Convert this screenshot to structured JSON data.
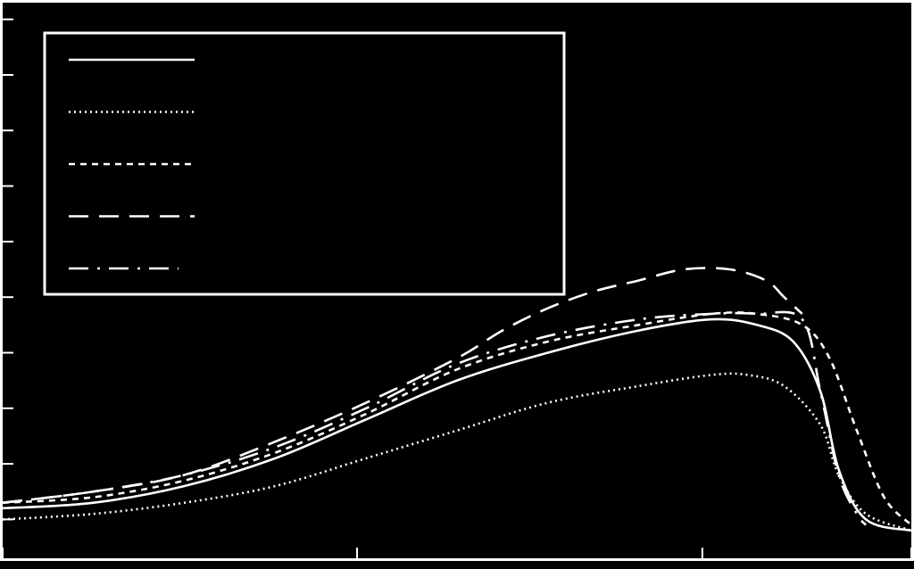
{
  "chart_data": {
    "type": "line",
    "title": "",
    "xlabel": "",
    "ylabel": "",
    "xlim": [
      0,
      1
    ],
    "ylim": [
      0,
      1
    ],
    "grid": false,
    "legend_position": "top-left",
    "x_ticks": [
      0.0,
      0.39,
      0.77,
      1.0
    ],
    "y_ticks": [
      0.07,
      0.17,
      0.27,
      0.37,
      0.47,
      0.57,
      0.67,
      0.77,
      0.87,
      0.97
    ],
    "series": [
      {
        "line_style": "solid",
        "x": [
          0.0,
          0.1,
          0.2,
          0.3,
          0.4,
          0.5,
          0.6,
          0.7,
          0.78,
          0.83,
          0.87,
          0.9,
          0.92,
          0.95,
          1.0
        ],
        "y": [
          0.09,
          0.1,
          0.13,
          0.18,
          0.25,
          0.32,
          0.37,
          0.41,
          0.43,
          0.42,
          0.39,
          0.3,
          0.16,
          0.07,
          0.05
        ]
      },
      {
        "line_style": "dotted",
        "x": [
          0.0,
          0.1,
          0.2,
          0.3,
          0.4,
          0.5,
          0.6,
          0.7,
          0.78,
          0.82,
          0.86,
          0.9,
          0.92,
          0.95,
          1.0
        ],
        "y": [
          0.07,
          0.08,
          0.1,
          0.13,
          0.18,
          0.23,
          0.28,
          0.31,
          0.33,
          0.33,
          0.31,
          0.24,
          0.15,
          0.08,
          0.05
        ]
      },
      {
        "line_style": "short-dashed",
        "x": [
          0.0,
          0.1,
          0.2,
          0.3,
          0.4,
          0.5,
          0.6,
          0.7,
          0.78,
          0.83,
          0.88,
          0.91,
          0.94,
          0.97,
          1.0
        ],
        "y": [
          0.1,
          0.11,
          0.14,
          0.19,
          0.26,
          0.34,
          0.39,
          0.42,
          0.44,
          0.44,
          0.42,
          0.36,
          0.23,
          0.11,
          0.06
        ]
      },
      {
        "line_style": "long-dashed",
        "x": [
          0.0,
          0.1,
          0.2,
          0.3,
          0.4,
          0.5,
          0.55,
          0.6,
          0.65,
          0.7,
          0.75,
          0.8,
          0.84,
          0.86,
          0.88
        ],
        "y": [
          0.1,
          0.12,
          0.15,
          0.21,
          0.28,
          0.36,
          0.41,
          0.45,
          0.48,
          0.5,
          0.52,
          0.52,
          0.5,
          0.47,
          0.44
        ]
      },
      {
        "line_style": "dash-dot",
        "x": [
          0.0,
          0.1,
          0.2,
          0.3,
          0.4,
          0.5,
          0.6,
          0.7,
          0.78,
          0.83,
          0.88,
          0.9,
          0.92,
          0.94,
          0.95
        ],
        "y": [
          0.1,
          0.12,
          0.15,
          0.2,
          0.27,
          0.35,
          0.4,
          0.43,
          0.44,
          0.44,
          0.43,
          0.3,
          0.15,
          0.08,
          0.06
        ]
      }
    ]
  }
}
